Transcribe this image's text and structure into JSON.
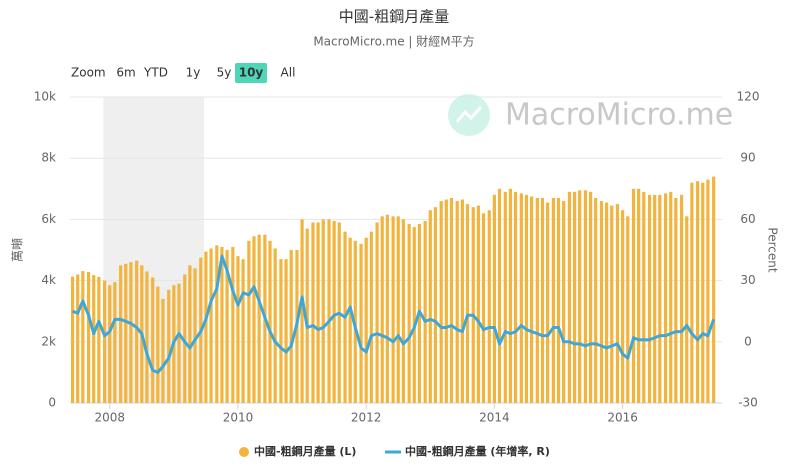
{
  "chart_data": {
    "type": "bar",
    "title": "中國-粗鋼月產量",
    "subtitle": "MacroMicro.me | 財經M平方",
    "watermark": "MacroMicro.me",
    "range_selector": {
      "label": "Zoom",
      "buttons": [
        "6m",
        "YTD",
        "1y",
        "5y",
        "10y",
        "All"
      ],
      "active": 4
    },
    "y_label": "萬噸",
    "y2_label": "Percent",
    "xlim": [
      2007.38,
      2017.55
    ],
    "xticks": [
      2008,
      2010,
      2012,
      2014,
      2016
    ],
    "ylim": [
      0,
      10000
    ],
    "yticks": [
      0,
      {
        "value": 2000,
        "label": "2k"
      },
      {
        "value": 4000,
        "label": "4k"
      },
      {
        "value": 6000,
        "label": "6k"
      },
      {
        "value": 8000,
        "label": "8k"
      },
      {
        "value": 10000,
        "label": "10k"
      }
    ],
    "y2lim": [
      -30,
      120
    ],
    "y2ticks": [
      -30,
      0,
      30,
      60,
      90,
      120
    ],
    "grid": true,
    "plot_band": {
      "from": 2007.9,
      "to": 2009.47,
      "color": "#efefef"
    },
    "x": [
      2007.42,
      2007.5,
      2007.58,
      2007.67,
      2007.75,
      2007.83,
      2007.92,
      2008.0,
      2008.08,
      2008.17,
      2008.25,
      2008.33,
      2008.42,
      2008.5,
      2008.58,
      2008.67,
      2008.75,
      2008.83,
      2008.92,
      2009.0,
      2009.08,
      2009.17,
      2009.25,
      2009.33,
      2009.42,
      2009.5,
      2009.58,
      2009.67,
      2009.75,
      2009.83,
      2009.92,
      2010.0,
      2010.08,
      2010.17,
      2010.25,
      2010.33,
      2010.42,
      2010.5,
      2010.58,
      2010.67,
      2010.75,
      2010.83,
      2010.92,
      2011.0,
      2011.08,
      2011.17,
      2011.25,
      2011.33,
      2011.42,
      2011.5,
      2011.58,
      2011.67,
      2011.75,
      2011.83,
      2011.92,
      2012.0,
      2012.08,
      2012.17,
      2012.25,
      2012.33,
      2012.42,
      2012.5,
      2012.58,
      2012.67,
      2012.75,
      2012.83,
      2012.92,
      2013.0,
      2013.08,
      2013.17,
      2013.25,
      2013.33,
      2013.42,
      2013.5,
      2013.58,
      2013.67,
      2013.75,
      2013.83,
      2013.92,
      2014.0,
      2014.08,
      2014.17,
      2014.25,
      2014.33,
      2014.42,
      2014.5,
      2014.58,
      2014.67,
      2014.75,
      2014.83,
      2014.92,
      2015.0,
      2015.08,
      2015.17,
      2015.25,
      2015.33,
      2015.42,
      2015.5,
      2015.58,
      2015.67,
      2015.75,
      2015.83,
      2015.92,
      2016.0,
      2016.08,
      2016.17,
      2016.25,
      2016.33,
      2016.42,
      2016.5,
      2016.58,
      2016.67,
      2016.75,
      2016.83,
      2016.92,
      2017.0,
      2017.08,
      2017.17,
      2017.25,
      2017.33,
      2017.42
    ],
    "series": [
      {
        "name": "中國-粗鋼月產量 (L)",
        "type": "bar",
        "axis": "y",
        "color": "#f2b43c",
        "values": [
          4130,
          4200,
          4310,
          4280,
          4180,
          4120,
          4000,
          3850,
          3950,
          4500,
          4550,
          4600,
          4650,
          4500,
          4300,
          4100,
          3800,
          3400,
          3700,
          3850,
          3900,
          4200,
          4500,
          4400,
          4750,
          4950,
          5050,
          5150,
          5100,
          5000,
          5100,
          4800,
          4700,
          5300,
          5450,
          5500,
          5500,
          5300,
          5050,
          4700,
          4700,
          5000,
          5000,
          6000,
          5700,
          5900,
          5900,
          6000,
          6000,
          5950,
          5900,
          5600,
          5400,
          5300,
          5200,
          5400,
          5600,
          5900,
          6100,
          6150,
          6100,
          6100,
          6000,
          5850,
          5750,
          5850,
          5950,
          6300,
          6400,
          6600,
          6650,
          6700,
          6600,
          6650,
          6500,
          6400,
          6450,
          6200,
          6300,
          6800,
          7000,
          6900,
          7000,
          6900,
          6850,
          6800,
          6750,
          6700,
          6700,
          6550,
          6700,
          6700,
          6600,
          6900,
          6900,
          6950,
          6950,
          6900,
          6700,
          6600,
          6550,
          6450,
          6500,
          6300,
          6100,
          7000,
          7000,
          6900,
          6800,
          6800,
          6800,
          6850,
          6900,
          6700,
          6800,
          6100,
          7200,
          7250,
          7200,
          7300,
          7400
        ]
      },
      {
        "name": "中國-粗鋼月產量 (年增率, R)",
        "type": "line",
        "axis": "y2",
        "color": "#3fa7d6",
        "values": [
          15,
          14,
          20,
          13,
          4,
          10,
          3,
          5,
          11,
          11,
          10,
          9,
          7,
          4,
          -6,
          -14,
          -15,
          -12,
          -8,
          0,
          4,
          0,
          -3,
          1,
          5,
          11,
          20,
          26,
          42,
          35,
          25,
          18,
          24,
          23,
          27,
          20,
          12,
          5,
          0,
          -3,
          -5,
          -2,
          9,
          22,
          7,
          8,
          6,
          7,
          10,
          13,
          14,
          12,
          17,
          7,
          -3,
          -5,
          3,
          4,
          3,
          2,
          0,
          3,
          -1,
          2,
          7,
          15,
          10,
          11,
          10,
          7,
          7,
          8,
          6,
          5,
          13,
          13,
          10,
          6,
          7,
          7,
          -1,
          5,
          4,
          5,
          8,
          6,
          5,
          4,
          3,
          3,
          7,
          7,
          0,
          0,
          -1,
          -1,
          -2,
          -1,
          -1,
          -2,
          -3,
          -2,
          -1,
          -6,
          -8,
          2,
          1,
          1,
          1,
          2,
          3,
          3,
          4,
          5,
          5,
          8,
          4,
          1,
          4,
          3,
          11
        ]
      }
    ]
  }
}
